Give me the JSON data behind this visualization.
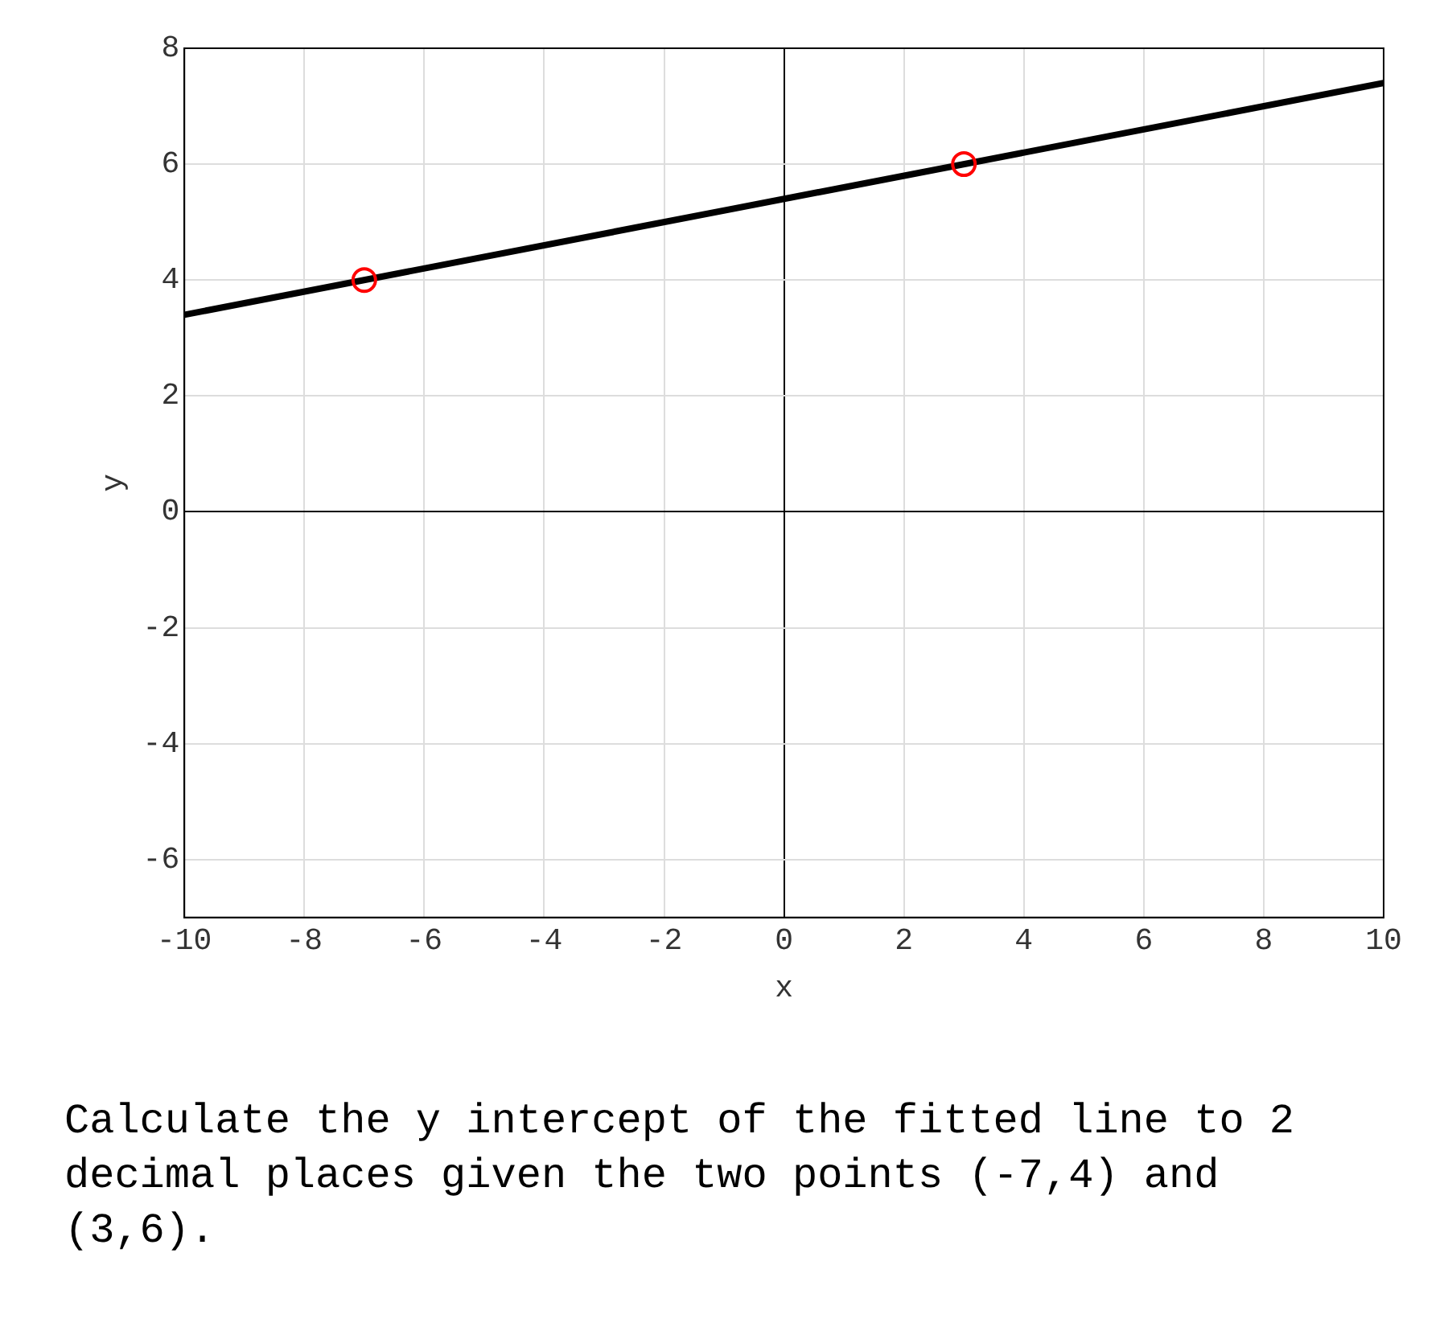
{
  "chart_data": {
    "type": "scatter",
    "xlabel": "x",
    "ylabel": "y",
    "xlim": [
      -10,
      10
    ],
    "ylim": [
      -7,
      8
    ],
    "xticks": [
      -10,
      -8,
      -6,
      -4,
      -2,
      0,
      2,
      4,
      6,
      8,
      10
    ],
    "yticks": [
      -6,
      -4,
      -2,
      0,
      2,
      4,
      6,
      8
    ],
    "grid": true,
    "legend": false,
    "marker": "circle",
    "series": [
      {
        "type": "line",
        "color": "#000000",
        "x": [
          -10,
          10
        ],
        "values": [
          3.4,
          7.4
        ],
        "marker": "none"
      },
      {
        "type": "scatter",
        "color": "#ff0000",
        "x": [
          -7,
          3
        ],
        "values": [
          4,
          6
        ]
      }
    ],
    "annotations": [
      "Calculate the y intercept of the fitted line to 2 decimal places given the two points (-7,4) and (3,6)."
    ]
  }
}
